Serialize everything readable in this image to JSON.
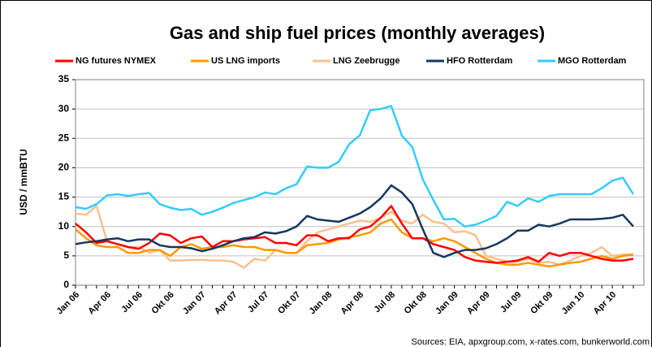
{
  "chart_data": {
    "type": "line",
    "title": "Gas and ship fuel prices (monthly averages)",
    "y_label": "USD / mmBTU",
    "source": "Sources: EIA, apxgroup.com, x-rates.com, bunkerworld.com",
    "categories": [
      "Jan 06",
      null,
      null,
      "Apr 06",
      null,
      null,
      "Jul 06",
      null,
      null,
      "Okt 06",
      null,
      null,
      "Jan 07",
      null,
      null,
      "Apr 07",
      null,
      null,
      "Jul 07",
      null,
      null,
      "Okt 07",
      null,
      null,
      "Jan 08",
      null,
      null,
      "Apr 08",
      null,
      null,
      "Jul 08",
      null,
      null,
      "Okt 08",
      null,
      null,
      "Jan 09",
      null,
      null,
      "Apr 09",
      null,
      null,
      "Jul 09",
      null,
      null,
      "Okt 09",
      null,
      null,
      "Jan 10",
      null,
      null,
      "Apr 10",
      null,
      null
    ],
    "series": [
      {
        "name": "NG futures NYMEX",
        "color": "#ff0000",
        "values": [
          10.5,
          9,
          7.2,
          7.5,
          7,
          6.5,
          6.2,
          7.2,
          8.8,
          8.5,
          7.2,
          8,
          8.3,
          6.5,
          7.5,
          7.5,
          7.8,
          8,
          8.2,
          7.2,
          7.2,
          6.8,
          8.5,
          8.5,
          7.5,
          8,
          8,
          9.5,
          10,
          11.5,
          13.5,
          10.5,
          8,
          8,
          7,
          6.5,
          6,
          4.8,
          4.2,
          4,
          3.8,
          4,
          4.2,
          4.8,
          4,
          5.5,
          5,
          5.5,
          5.5,
          5,
          4.5,
          4.2,
          4.2,
          4.5
        ]
      },
      {
        "name": "US LNG imports",
        "color": "#ff9900",
        "values": [
          9.5,
          8,
          6.8,
          6.5,
          6.5,
          5.5,
          5.5,
          6,
          6,
          5,
          6.5,
          7,
          6.2,
          6.5,
          6.5,
          6.8,
          6.5,
          6.5,
          6,
          6,
          5.5,
          5.5,
          6.8,
          7,
          7.2,
          7.8,
          8.2,
          8.5,
          9,
          10.5,
          11.2,
          9,
          8,
          8,
          7.5,
          8,
          7.5,
          6.5,
          5.5,
          4.5,
          3.8,
          3.5,
          3.5,
          3.8,
          3.5,
          3.2,
          3.5,
          3.8,
          4,
          4.5,
          5,
          4.5,
          5,
          5.2
        ]
      },
      {
        "name": "LNG Zeebrugge",
        "color": "#fac090",
        "values": [
          12.2,
          12,
          13.5,
          7.5,
          7,
          6.5,
          6.5,
          5.5,
          6,
          4.2,
          4.2,
          4.3,
          4.3,
          4.2,
          4.2,
          4,
          3,
          4.5,
          4.2,
          6,
          5.5,
          5.5,
          7.5,
          9,
          9.5,
          10,
          10.5,
          11,
          10.8,
          11.5,
          12.5,
          11,
          10.5,
          12,
          10.8,
          10.5,
          9,
          9.2,
          8.5,
          5,
          4.5,
          4,
          4,
          4.5,
          3.8,
          4,
          3.5,
          4.2,
          5,
          5.5,
          6.5,
          5,
          5.2,
          5.3
        ]
      },
      {
        "name": "HFO Rotterdam",
        "color": "#17375e",
        "values": [
          7,
          7.3,
          7.5,
          7.8,
          8,
          7.5,
          7.8,
          7.8,
          6.8,
          6.5,
          6.5,
          6.3,
          5.8,
          6.2,
          6.8,
          7.5,
          8,
          8.2,
          9,
          8.8,
          9.2,
          10,
          11.8,
          11.2,
          11,
          10.8,
          11.5,
          12.2,
          13.3,
          14.8,
          17,
          15.8,
          13.8,
          9.5,
          5.5,
          4.8,
          5.5,
          6,
          6,
          6.3,
          7,
          8,
          9.3,
          9.3,
          10.3,
          10,
          10.5,
          11.2,
          11.2,
          11.2,
          11.3,
          11.5,
          12,
          10
        ]
      },
      {
        "name": "MGO Rotterdam",
        "color": "#33ccff",
        "values": [
          13.3,
          13,
          13.8,
          15.3,
          15.5,
          15.2,
          15.5,
          15.7,
          13.8,
          13.2,
          12.8,
          13,
          12,
          12.5,
          13.2,
          14,
          14.5,
          15,
          15.8,
          15.5,
          16.5,
          17.2,
          20.2,
          20,
          20,
          21,
          24,
          25.5,
          29.8,
          30,
          30.5,
          25.5,
          23.5,
          18,
          14.5,
          11.2,
          11.3,
          10,
          10.3,
          11,
          11.8,
          14.2,
          13.5,
          14.8,
          14.2,
          15.2,
          15.5,
          15.5,
          15.5,
          15.5,
          16.5,
          17.8,
          18.3,
          15.5
        ]
      }
    ],
    "ylim": [
      0,
      35
    ],
    "yticks": [
      0,
      5,
      10,
      15,
      20,
      25,
      30,
      35
    ],
    "grid": true,
    "legend": "top"
  }
}
